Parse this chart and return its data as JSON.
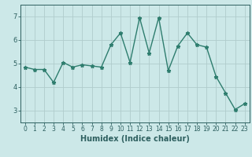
{
  "x": [
    0,
    1,
    2,
    3,
    4,
    5,
    6,
    7,
    8,
    9,
    10,
    11,
    12,
    13,
    14,
    15,
    16,
    17,
    18,
    19,
    20,
    21,
    22,
    23
  ],
  "y": [
    4.85,
    4.75,
    4.75,
    4.2,
    5.05,
    4.85,
    4.95,
    4.9,
    4.85,
    5.8,
    6.3,
    5.05,
    6.95,
    5.45,
    6.95,
    4.7,
    5.75,
    6.3,
    5.8,
    5.7,
    4.45,
    3.75,
    3.05,
    3.3
  ],
  "line_color": "#2e7d6e",
  "marker": "*",
  "marker_size": 3.5,
  "background_color": "#cce8e8",
  "grid_color": "#b0cccc",
  "tick_color": "#2e6060",
  "xlabel": "Humidex (Indice chaleur)",
  "xlabel_fontsize": 7,
  "ylim": [
    2.5,
    7.5
  ],
  "xlim": [
    -0.5,
    23.5
  ],
  "yticks": [
    3,
    4,
    5,
    6,
    7
  ],
  "xticks": [
    0,
    1,
    2,
    3,
    4,
    5,
    6,
    7,
    8,
    9,
    10,
    11,
    12,
    13,
    14,
    15,
    16,
    17,
    18,
    19,
    20,
    21,
    22,
    23
  ],
  "tick_fontsize": 5.5,
  "linewidth": 1.0
}
